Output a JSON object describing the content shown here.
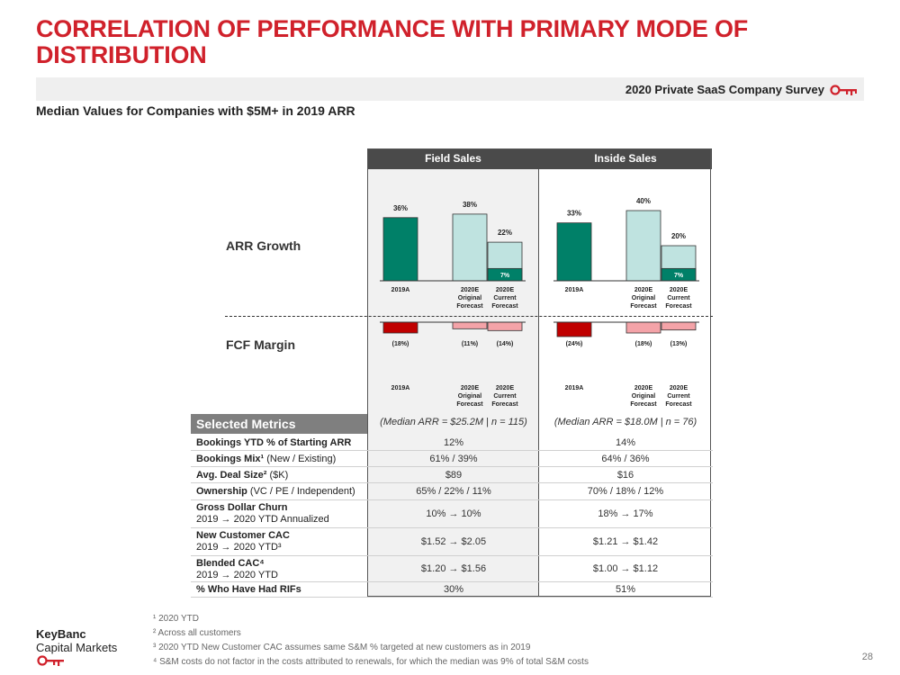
{
  "title": "CORRELATION OF PERFORMANCE WITH PRIMARY MODE OF DISTRIBUTION",
  "survey_label": "2020 Private SaaS Company Survey",
  "subtitle": "Median Values for Companies with $5M+ in 2019 ARR",
  "colors": {
    "accent": "#d0212b",
    "dark_teal": "#008068",
    "light_teal": "#bfe3e0",
    "dark_red": "#c00000",
    "light_red": "#f4a3a8"
  },
  "columns": [
    "Field Sales",
    "Inside Sales"
  ],
  "row_labels": {
    "arr": "ARR Growth",
    "fcf": "FCF Margin"
  },
  "chart_data": [
    {
      "type": "bar",
      "title": "ARR Growth",
      "groups": [
        {
          "name": "Field Sales",
          "bars": [
            {
              "category": "2019A",
              "value": 36,
              "label": "36%",
              "style": "dark_teal"
            },
            {
              "category": "2020E Original Forecast",
              "value": 38,
              "label": "38%",
              "style": "light_teal"
            },
            {
              "category": "2020E Current Forecast",
              "value": 22,
              "label": "22%",
              "style": "light_teal",
              "inner_value": 7,
              "inner_label": "7%"
            }
          ]
        },
        {
          "name": "Inside Sales",
          "bars": [
            {
              "category": "2019A",
              "value": 33,
              "label": "33%",
              "style": "dark_teal"
            },
            {
              "category": "2020E Original Forecast",
              "value": 40,
              "label": "40%",
              "style": "light_teal"
            },
            {
              "category": "2020E Current Forecast",
              "value": 20,
              "label": "20%",
              "style": "light_teal",
              "inner_value": 7,
              "inner_label": "7%"
            }
          ]
        }
      ],
      "category_labels": [
        [
          "2019A"
        ],
        [
          "2020E",
          "Original",
          "Forecast"
        ],
        [
          "2020E",
          "Current",
          "Forecast"
        ]
      ]
    },
    {
      "type": "bar",
      "title": "FCF Margin",
      "groups": [
        {
          "name": "Field Sales",
          "bars": [
            {
              "category": "2019A",
              "value": -18,
              "label": "(18%)",
              "style": "dark_red"
            },
            {
              "category": "2020E Original Forecast",
              "value": -11,
              "label": "(11%)",
              "style": "light_red"
            },
            {
              "category": "2020E Current Forecast",
              "value": -14,
              "label": "(14%)",
              "style": "light_red"
            }
          ]
        },
        {
          "name": "Inside Sales",
          "bars": [
            {
              "category": "2019A",
              "value": -24,
              "label": "(24%)",
              "style": "dark_red"
            },
            {
              "category": "2020E Original Forecast",
              "value": -18,
              "label": "(18%)",
              "style": "light_red"
            },
            {
              "category": "2020E Current Forecast",
              "value": -13,
              "label": "(13%)",
              "style": "light_red"
            }
          ]
        }
      ],
      "category_labels": [
        [
          "2019A"
        ],
        [
          "2020E",
          "Original",
          "Forecast"
        ],
        [
          "2020E",
          "Current",
          "Forecast"
        ]
      ]
    }
  ],
  "metrics": {
    "header": "Selected Metrics",
    "field_median": "(Median ARR = $25.2M | n = 115)",
    "inside_median": "(Median ARR = $18.0M | n = 76)",
    "rows": [
      {
        "label_bold": "Bookings YTD % of Starting ARR",
        "label_rest": "",
        "label_line2": "",
        "field": "12%",
        "inside": "14%"
      },
      {
        "label_bold": "Bookings Mix¹",
        "label_rest": " (New / Existing)",
        "label_line2": "",
        "field": "61% / 39%",
        "inside": "64% / 36%"
      },
      {
        "label_bold": "Avg. Deal Size²",
        "label_rest": " ($K)",
        "label_line2": "",
        "field": "$89",
        "inside": "$16"
      },
      {
        "label_bold": "Ownership",
        "label_rest": " (VC / PE / Independent)",
        "label_line2": "",
        "field": "65% / 22% / 11%",
        "inside": "70% / 18% / 12%"
      },
      {
        "label_bold": "Gross Dollar Churn",
        "label_rest": "",
        "label_line2": "2019 → 2020 YTD Annualized",
        "field": "10% → 10%",
        "inside": "18% → 17%"
      },
      {
        "label_bold": "New Customer CAC",
        "label_rest": "",
        "label_line2": "2019 → 2020 YTD³",
        "field": "$1.52 → $2.05",
        "inside": "$1.21 → $1.42"
      },
      {
        "label_bold": "Blended CAC⁴",
        "label_rest": "",
        "label_line2": "2019 → 2020 YTD",
        "field": "$1.20 → $1.56",
        "inside": "$1.00 → $1.12"
      },
      {
        "label_bold": "% Who Have Had RIFs",
        "label_rest": "",
        "label_line2": "",
        "field": "30%",
        "inside": "51%"
      }
    ]
  },
  "footnotes": [
    "¹ 2020 YTD",
    "² Across all customers",
    "³ 2020 YTD New Customer CAC assumes same S&M % targeted at new customers as in 2019",
    "⁴ S&M costs do not factor in the costs attributed to renewals, for which the median was 9% of total S&M costs"
  ],
  "logo": {
    "line1": "KeyBanc",
    "line2": "Capital Markets"
  },
  "page_number": "28"
}
